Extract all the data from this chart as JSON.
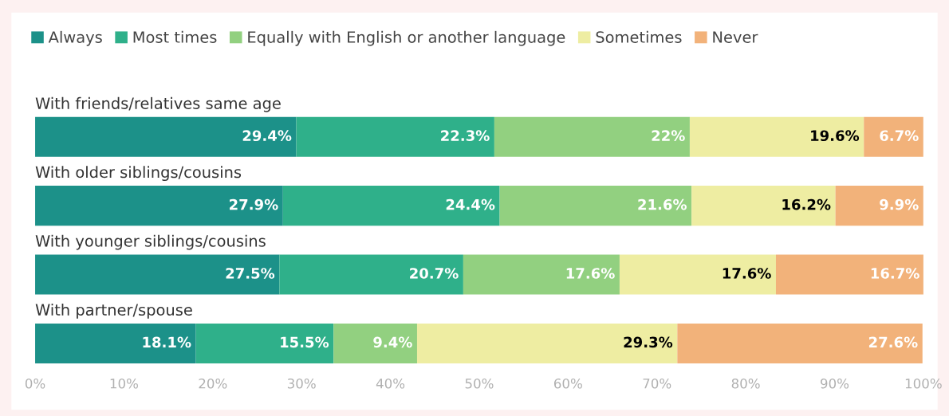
{
  "chart_data": {
    "type": "bar",
    "orientation": "horizontal",
    "stacked": true,
    "categories": [
      "With friends/relatives same age",
      "With older siblings/cousins",
      "With younger siblings/cousins",
      "With partner/spouse"
    ],
    "series": [
      {
        "name": "Always",
        "color": "#1c9189",
        "values": [
          29.4,
          27.9,
          27.5,
          18.1
        ],
        "value_labels": [
          "29.4%",
          "27.9%",
          "27.5%",
          "18.1%"
        ]
      },
      {
        "name": "Most times",
        "color": "#2fb08a",
        "values": [
          22.3,
          24.4,
          20.7,
          15.5
        ],
        "value_labels": [
          "22.3%",
          "24.4%",
          "20.7%",
          "15.5%"
        ]
      },
      {
        "name": "Equally with English or another language",
        "color": "#92d080",
        "values": [
          22,
          21.6,
          17.6,
          9.4
        ],
        "value_labels": [
          "22%",
          "21.6%",
          "17.6%",
          "9.4%"
        ]
      },
      {
        "name": "Sometimes",
        "color": "#eeeda2",
        "values": [
          19.6,
          16.2,
          17.6,
          29.3
        ],
        "value_labels": [
          "19.6%",
          "16.2%",
          "17.6%",
          "29.3%"
        ]
      },
      {
        "name": "Never",
        "color": "#f2b27a",
        "values": [
          6.7,
          9.9,
          16.7,
          27.6
        ],
        "value_labels": [
          "6.7%",
          "9.9%",
          "16.7%",
          "27.6%"
        ]
      }
    ],
    "xlim": [
      0,
      100
    ],
    "xticks": [
      {
        "value": 0,
        "label": "0%"
      },
      {
        "value": 10,
        "label": "10%"
      },
      {
        "value": 20,
        "label": "20%"
      },
      {
        "value": 30,
        "label": "30%"
      },
      {
        "value": 40,
        "label": "40%"
      },
      {
        "value": 50,
        "label": "50%"
      },
      {
        "value": 60,
        "label": "60%"
      },
      {
        "value": 70,
        "label": "70%"
      },
      {
        "value": 80,
        "label": "80%"
      },
      {
        "value": 90,
        "label": "90%"
      },
      {
        "value": 100,
        "label": "100%"
      }
    ],
    "legend": "top left",
    "grid": false
  }
}
